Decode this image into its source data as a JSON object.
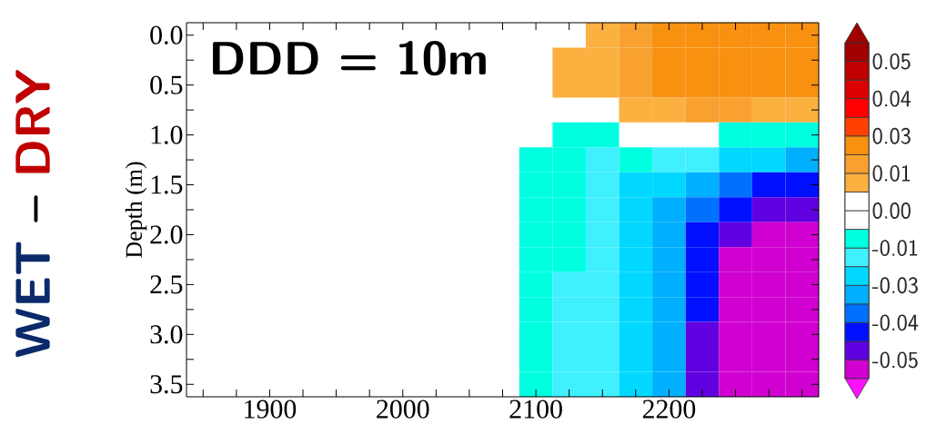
{
  "chart_data": {
    "type": "heatmap",
    "ylabel": "Depth (m)",
    "annotations": [
      "DDD = 10m",
      "WET",
      "–",
      "DRY"
    ],
    "categories": [
      null,
      null,
      "1900",
      null,
      null,
      null,
      "2000",
      null,
      null,
      null,
      "2100",
      null,
      null,
      null,
      "2200",
      null,
      null,
      null,
      null
    ],
    "y_categories": [
      "0.0",
      null,
      "0.5",
      null,
      "1.0",
      null,
      "1.5",
      null,
      "2.0",
      null,
      "2.5",
      null,
      "3.0",
      null,
      "3.5"
    ],
    "cells": [
      [
        null,
        null,
        null,
        null,
        null,
        null,
        null,
        null,
        null,
        null,
        null,
        null,
        0.009,
        0.015,
        0.02,
        0.02,
        0.021,
        0.022,
        0.022
      ],
      [
        null,
        null,
        null,
        null,
        null,
        null,
        null,
        null,
        null,
        null,
        null,
        0.009,
        0.009,
        0.015,
        0.02,
        0.02,
        0.021,
        0.022,
        0.022
      ],
      [
        null,
        null,
        null,
        null,
        null,
        null,
        null,
        null,
        null,
        null,
        null,
        0.009,
        0.009,
        0.015,
        0.02,
        0.02,
        0.021,
        0.022,
        0.022
      ],
      [
        null,
        null,
        null,
        null,
        null,
        null,
        null,
        null,
        null,
        null,
        null,
        null,
        null,
        0.009,
        0.012,
        0.015,
        0.016,
        0.012,
        0.008
      ],
      [
        null,
        null,
        null,
        null,
        null,
        null,
        null,
        null,
        null,
        null,
        null,
        -0.008,
        -0.008,
        null,
        null,
        null,
        -0.008,
        -0.01,
        -0.012
      ],
      [
        null,
        null,
        null,
        null,
        null,
        null,
        null,
        null,
        null,
        null,
        -0.008,
        -0.009,
        -0.013,
        -0.01,
        -0.013,
        -0.015,
        -0.02,
        -0.025,
        -0.03
      ],
      [
        null,
        null,
        null,
        null,
        null,
        null,
        null,
        null,
        null,
        null,
        -0.008,
        -0.009,
        -0.013,
        -0.02,
        -0.022,
        -0.028,
        -0.033,
        -0.038,
        -0.042
      ],
      [
        null,
        null,
        null,
        null,
        null,
        null,
        null,
        null,
        null,
        null,
        -0.008,
        -0.009,
        -0.013,
        -0.02,
        -0.027,
        -0.035,
        -0.04,
        -0.045,
        -0.048
      ],
      [
        null,
        null,
        null,
        null,
        null,
        null,
        null,
        null,
        null,
        null,
        -0.008,
        -0.009,
        -0.013,
        -0.02,
        -0.027,
        -0.04,
        -0.046,
        -0.053,
        -0.054
      ],
      [
        null,
        null,
        null,
        null,
        null,
        null,
        null,
        null,
        null,
        null,
        -0.008,
        -0.009,
        -0.017,
        -0.022,
        -0.027,
        -0.04,
        -0.052,
        -0.053,
        -0.054
      ],
      [
        null,
        null,
        null,
        null,
        null,
        null,
        null,
        null,
        null,
        null,
        -0.008,
        -0.013,
        -0.017,
        -0.022,
        -0.03,
        -0.04,
        -0.052,
        -0.053,
        -0.054
      ],
      [
        null,
        null,
        null,
        null,
        null,
        null,
        null,
        null,
        null,
        null,
        -0.008,
        -0.013,
        -0.018,
        -0.022,
        -0.03,
        -0.04,
        -0.052,
        -0.053,
        -0.054
      ],
      [
        null,
        null,
        null,
        null,
        null,
        null,
        null,
        null,
        null,
        null,
        -0.008,
        -0.013,
        -0.018,
        -0.022,
        -0.03,
        -0.045,
        -0.052,
        -0.053,
        -0.054
      ],
      [
        null,
        null,
        null,
        null,
        null,
        null,
        null,
        null,
        null,
        null,
        -0.008,
        -0.013,
        -0.018,
        -0.022,
        -0.03,
        -0.045,
        -0.052,
        -0.053,
        -0.054
      ],
      [
        null,
        null,
        null,
        null,
        null,
        null,
        null,
        null,
        null,
        null,
        -0.008,
        -0.013,
        -0.018,
        -0.022,
        -0.03,
        -0.045,
        -0.052,
        -0.053,
        -0.054
      ]
    ],
    "clim": [
      -0.05625,
      0.05625
    ],
    "cticks": [
      {
        "value": 0.05,
        "label": "0.05"
      },
      {
        "value": 0.0375,
        "label": "0.04"
      },
      {
        "value": 0.025,
        "label": "0.03"
      },
      {
        "value": 0.0125,
        "label": "0.01"
      },
      {
        "value": 0,
        "label": "0.00"
      },
      {
        "value": -0.0125,
        "label": "-0.01"
      },
      {
        "value": -0.025,
        "label": "-0.03"
      },
      {
        "value": -0.0375,
        "label": "-0.04"
      },
      {
        "value": -0.05,
        "label": "-0.05"
      }
    ]
  }
}
